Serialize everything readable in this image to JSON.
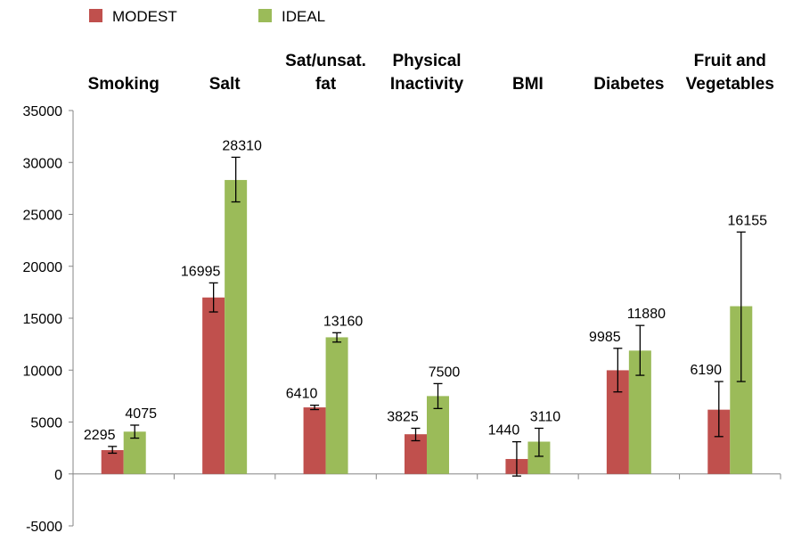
{
  "chart_data": {
    "type": "bar",
    "categories": [
      [
        "Smoking"
      ],
      [
        "Salt"
      ],
      [
        "Sat/unsat.",
        "fat"
      ],
      [
        "Physical",
        "Inactivity"
      ],
      [
        "BMI"
      ],
      [
        "Diabetes"
      ],
      [
        "Fruit and",
        "Vegetables"
      ]
    ],
    "series": [
      {
        "name": "MODEST",
        "color": "#c0504d",
        "values": [
          2295,
          16995,
          6410,
          3825,
          1440,
          9985,
          6190
        ],
        "labels": [
          "2295",
          "16995",
          "6410",
          "3825",
          "1440",
          "9985",
          "6190"
        ],
        "error_low": [
          2000,
          15600,
          6200,
          3200,
          -200,
          7900,
          3600
        ],
        "error_high": [
          2650,
          18400,
          6620,
          4400,
          3100,
          12100,
          8900
        ]
      },
      {
        "name": "IDEAL",
        "color": "#9bbb59",
        "values": [
          4075,
          28310,
          13160,
          7500,
          3110,
          11880,
          16155
        ],
        "labels": [
          "4075",
          "28310",
          "13160",
          "7500",
          "3110",
          "11880",
          "16155"
        ],
        "error_low": [
          3450,
          26200,
          12700,
          6300,
          1700,
          9500,
          8900
        ],
        "error_high": [
          4700,
          30500,
          13600,
          8700,
          4400,
          14300,
          23300
        ]
      }
    ],
    "yticks": [
      35000,
      30000,
      25000,
      20000,
      15000,
      10000,
      5000,
      0,
      -5000
    ],
    "ytick_labels": [
      "35000",
      "30000",
      "25000",
      "20000",
      "15000",
      "10000",
      "5000",
      "0",
      "-5000"
    ],
    "ylim": [
      -5000,
      35000
    ],
    "legend_position": "top-left",
    "category_labels_position": "top",
    "grid": false,
    "title": "",
    "xlabel": "",
    "ylabel": ""
  }
}
